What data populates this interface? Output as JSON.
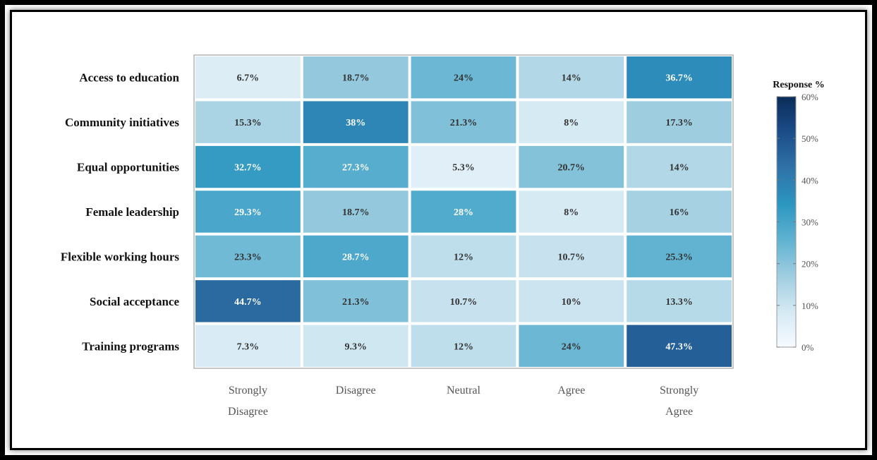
{
  "chart_data": {
    "type": "heatmap",
    "rows": [
      "Access to education",
      "Community initiatives",
      "Equal opportunities",
      "Female leadership",
      "Flexible working hours",
      "Social acceptance",
      "Training programs"
    ],
    "columns": [
      [
        "Strongly",
        "Disagree"
      ],
      [
        "Disagree"
      ],
      [
        "Neutral"
      ],
      [
        "Agree"
      ],
      [
        "Strongly",
        "Agree"
      ]
    ],
    "values": [
      [
        6.7,
        18.7,
        24,
        14,
        36.7
      ],
      [
        15.3,
        38,
        21.3,
        8,
        17.3
      ],
      [
        32.7,
        27.3,
        5.3,
        20.7,
        14
      ],
      [
        29.3,
        18.7,
        28,
        8,
        16
      ],
      [
        23.3,
        28.7,
        12,
        10.7,
        25.3
      ],
      [
        44.7,
        21.3,
        10.7,
        10,
        13.3
      ],
      [
        7.3,
        9.3,
        12,
        24,
        47.3
      ]
    ],
    "cell_labels": [
      [
        "6.7%",
        "18.7%",
        "24%",
        "14%",
        "36.7%"
      ],
      [
        "15.3%",
        "38%",
        "21.3%",
        "8%",
        "17.3%"
      ],
      [
        "32.7%",
        "27.3%",
        "5.3%",
        "20.7%",
        "14%"
      ],
      [
        "29.3%",
        "18.7%",
        "28%",
        "8%",
        "16%"
      ],
      [
        "23.3%",
        "28.7%",
        "12%",
        "10.7%",
        "25.3%"
      ],
      [
        "44.7%",
        "21.3%",
        "10.7%",
        "10%",
        "13.3%"
      ],
      [
        "7.3%",
        "9.3%",
        "12%",
        "24%",
        "47.3%"
      ]
    ],
    "colorbar": {
      "title": "Response %",
      "range": [
        0,
        60
      ],
      "ticks": [
        0,
        10,
        20,
        30,
        40,
        50,
        60
      ],
      "tick_labels": [
        "0%",
        "10%",
        "20%",
        "30%",
        "40%",
        "50%",
        "60%"
      ],
      "colors": [
        "#f7fbff",
        "#d4e9f3",
        "#9fcde0",
        "#5fb2d1",
        "#2c96c0",
        "#2f72a8",
        "#1c4d89",
        "#0b2c59"
      ]
    }
  }
}
